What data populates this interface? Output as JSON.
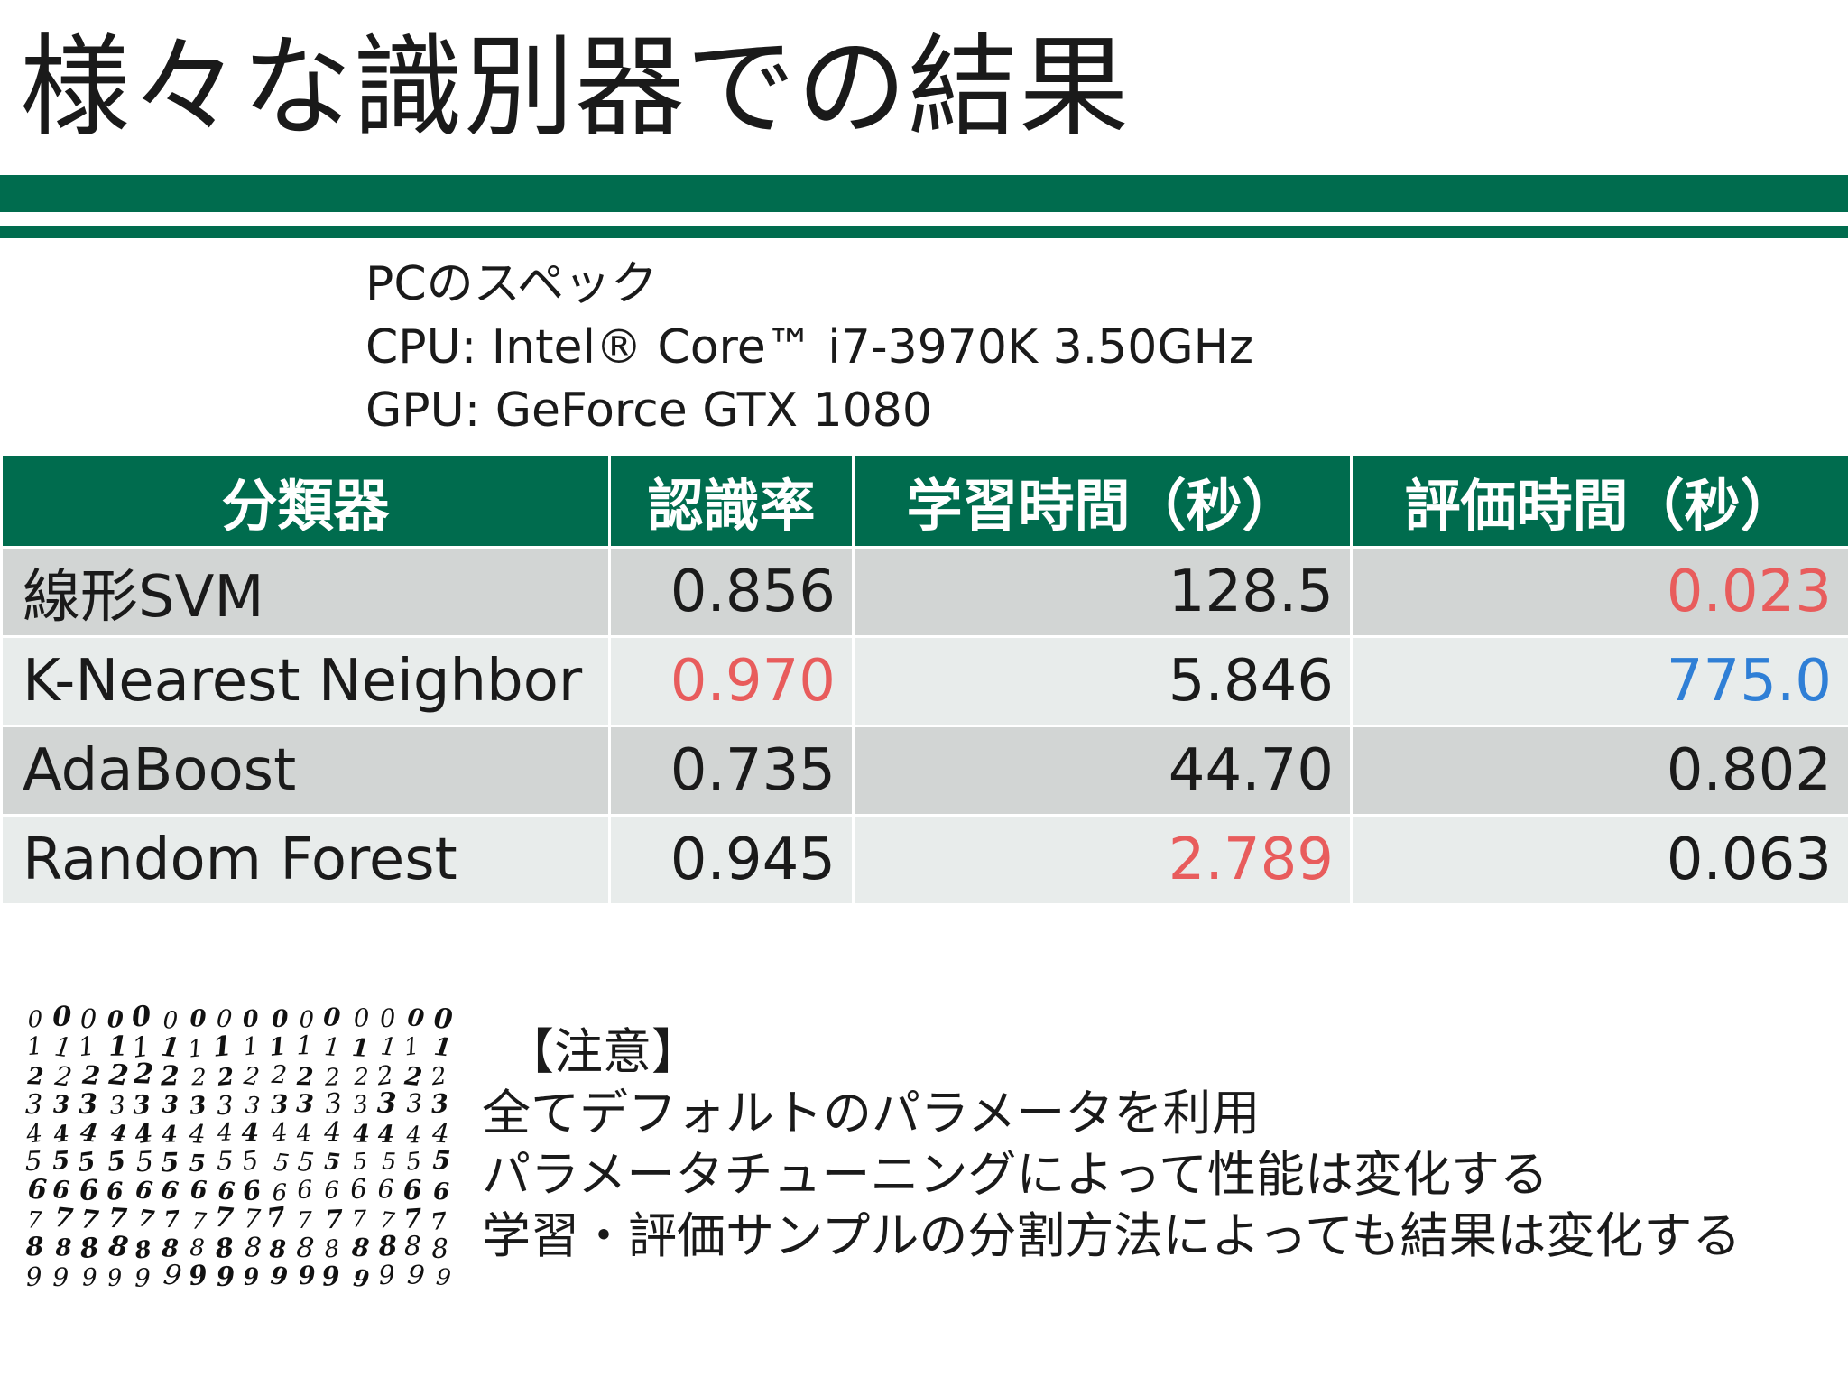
{
  "title": "様々な識別器での結果",
  "specs": {
    "heading": "PCのスペック",
    "cpu": "CPU: Intel® Core™ i7-3970K 3.50GHz",
    "gpu": "GPU: GeForce GTX 1080"
  },
  "table": {
    "headers": [
      "分類器",
      "認識率",
      "学習時間（秒）",
      "評価時間（秒）"
    ],
    "rows": [
      {
        "name": "線形SVM",
        "accuracy": "0.856",
        "train_time": "128.5",
        "eval_time": "0.023"
      },
      {
        "name": "K-Nearest Neighbor",
        "accuracy": "0.970",
        "train_time": "5.846",
        "eval_time": "775.0"
      },
      {
        "name": "AdaBoost",
        "accuracy": "0.735",
        "train_time": "44.70",
        "eval_time": "0.802"
      },
      {
        "name": "Random Forest",
        "accuracy": "0.945",
        "train_time": "2.789",
        "eval_time": "0.063"
      }
    ],
    "highlight_colors": {
      "best": "#e85c5c",
      "worst": "#2f7fd6"
    }
  },
  "notes": {
    "heading": "【注意】",
    "lines": [
      "全てデフォルトのパラメータを利用",
      "パラメータチューニングによって性能は変化する",
      "学習・評価サンプルの分割方法によっても結果は変化する"
    ]
  },
  "theme": {
    "accent": "#006c4e"
  }
}
